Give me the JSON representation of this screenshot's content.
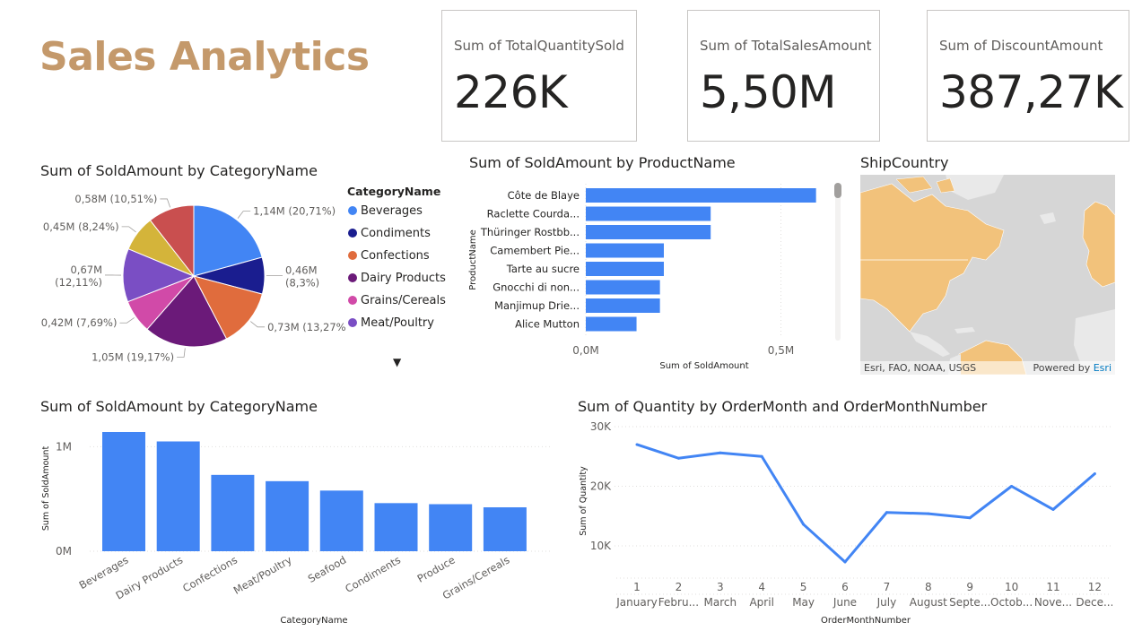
{
  "page": {
    "title": "Sales Analytics"
  },
  "kpis": [
    {
      "label": "Sum of TotalQuantitySold",
      "value": "226K"
    },
    {
      "label": "Sum of TotalSalesAmount",
      "value": "5,50M"
    },
    {
      "label": "Sum of DiscountAmount",
      "value": "387,27K"
    }
  ],
  "colors": {
    "title": "#c4996b",
    "bar": "#4285f4",
    "map_land": "#f2c27b",
    "map_water": "#d6d6d6"
  },
  "pie_visual": {
    "title": "Sum of SoldAmount by CategoryName",
    "legend_title": "CategoryName",
    "legend": [
      {
        "name": "Beverages",
        "color": "#4285f4"
      },
      {
        "name": "Condiments",
        "color": "#1a1d8f"
      },
      {
        "name": "Confections",
        "color": "#e06c3d"
      },
      {
        "name": "Dairy Products",
        "color": "#6b1a79"
      },
      {
        "name": "Grains/Cereals",
        "color": "#d14aa8"
      },
      {
        "name": "Meat/Poultry",
        "color": "#7a4ec4"
      }
    ],
    "legend_more": "▼"
  },
  "product_visual": {
    "title": "Sum of SoldAmount by ProductName",
    "ylabel": "ProductName",
    "xlabel": "Sum of SoldAmount",
    "xticks": [
      "0,0M",
      "0,5M"
    ]
  },
  "map_visual": {
    "title": "ShipCountry",
    "attribution": "Esri, FAO, NOAA, USGS",
    "powered_by": "Powered by",
    "esri": "Esri"
  },
  "category_bar_visual": {
    "title": "Sum of SoldAmount by CategoryName",
    "xlabel": "CategoryName",
    "ylabel": "Sum of SoldAmount",
    "yticks": [
      "0M",
      "1M"
    ]
  },
  "line_visual": {
    "title": "Sum of Quantity by OrderMonth and OrderMonthNumber",
    "xlabel": "OrderMonthNumber",
    "ylabel": "Sum of Quantity",
    "yticks": [
      "10K",
      "20K",
      "30K"
    ]
  },
  "chart_data": [
    {
      "type": "pie",
      "title": "Sum of SoldAmount by CategoryName",
      "slices": [
        {
          "name": "Beverages",
          "value": 1.14,
          "label": "1,14M (20,71%)",
          "color": "#4285f4"
        },
        {
          "name": "Condiments",
          "value": 0.46,
          "label": "0,46M (8,3%)",
          "color": "#1a1d8f"
        },
        {
          "name": "Confections",
          "value": 0.73,
          "label": "0,73M (13,27%)",
          "color": "#e06c3d"
        },
        {
          "name": "Dairy Products",
          "value": 1.05,
          "label": "1,05M (19,17%)",
          "color": "#6b1a79"
        },
        {
          "name": "Grains/Cereals",
          "value": 0.42,
          "label": "0,42M (7,69%)",
          "color": "#d14aa8"
        },
        {
          "name": "Meat/Poultry",
          "value": 0.67,
          "label": "0,67M (12,11%)",
          "color": "#7a4ec4"
        },
        {
          "name": "Produce",
          "value": 0.45,
          "label": "0,45M (8,24%)",
          "color": "#d4b43a"
        },
        {
          "name": "Seafood",
          "value": 0.58,
          "label": "0,58M (10,51%)",
          "color": "#c94f4f"
        }
      ]
    },
    {
      "type": "bar",
      "orientation": "horizontal",
      "title": "Sum of SoldAmount by ProductName",
      "xlabel": "Sum of SoldAmount",
      "ylabel": "ProductName",
      "categories": [
        "Côte de Blaye",
        "Raclette Courda...",
        "Thüringer Rostbb...",
        "Camembert Pie...",
        "Tarte au sucre",
        "Gnocchi di non...",
        "Manjimup Drie...",
        "Alice Mutton"
      ],
      "values": [
        0.59,
        0.32,
        0.32,
        0.2,
        0.2,
        0.19,
        0.19,
        0.13
      ],
      "xlim": [
        0,
        0.65
      ]
    },
    {
      "type": "bar",
      "title": "Sum of SoldAmount by CategoryName",
      "xlabel": "CategoryName",
      "ylabel": "Sum of SoldAmount",
      "categories": [
        "Beverages",
        "Dairy Products",
        "Confections",
        "Meat/Poultry",
        "Seafood",
        "Condiments",
        "Produce",
        "Grains/Cereals"
      ],
      "values": [
        1.14,
        1.05,
        0.73,
        0.67,
        0.58,
        0.46,
        0.45,
        0.42
      ],
      "ylim": [
        0,
        1.2
      ]
    },
    {
      "type": "line",
      "title": "Sum of Quantity by OrderMonth and OrderMonthNumber",
      "xlabel": "OrderMonthNumber",
      "ylabel": "Sum of Quantity",
      "x": [
        "1",
        "2",
        "3",
        "4",
        "5",
        "6",
        "7",
        "8",
        "9",
        "10",
        "11",
        "12"
      ],
      "x_sub": [
        "January",
        "Febru...",
        "March",
        "April",
        "May",
        "June",
        "July",
        "August",
        "Septe...",
        "Octob...",
        "Nove...",
        "Dece..."
      ],
      "values": [
        27000,
        24700,
        25600,
        25000,
        13600,
        7300,
        15600,
        15400,
        14700,
        20000,
        16100,
        22100
      ],
      "ylim": [
        5000,
        30000
      ]
    }
  ]
}
